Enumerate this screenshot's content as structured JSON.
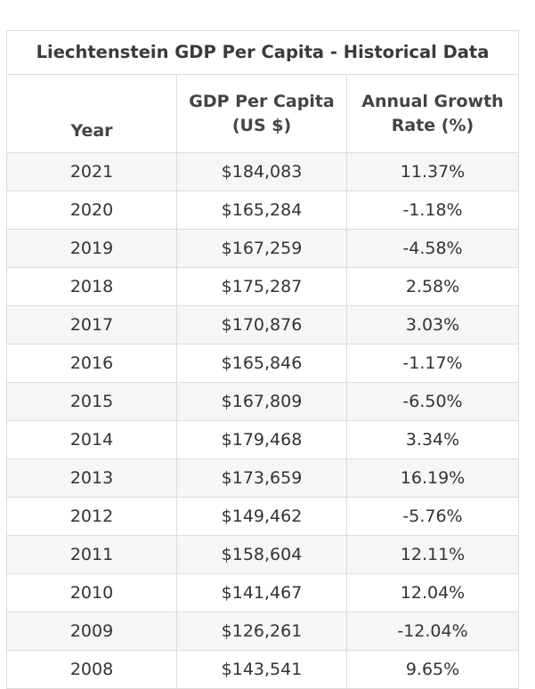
{
  "table": {
    "title": "Liechtenstein GDP Per Capita - Historical Data",
    "headers": {
      "year": "Year",
      "gdp_line1": "GDP Per Capita",
      "gdp_line2": "(US $)",
      "growth_line1": "Annual Growth",
      "growth_line2": "Rate (%)"
    },
    "rows": [
      {
        "year": "2021",
        "gdp": "$184,083",
        "growth": "11.37%"
      },
      {
        "year": "2020",
        "gdp": "$165,284",
        "growth": "-1.18%"
      },
      {
        "year": "2019",
        "gdp": "$167,259",
        "growth": "-4.58%"
      },
      {
        "year": "2018",
        "gdp": "$175,287",
        "growth": "2.58%"
      },
      {
        "year": "2017",
        "gdp": "$170,876",
        "growth": "3.03%"
      },
      {
        "year": "2016",
        "gdp": "$165,846",
        "growth": "-1.17%"
      },
      {
        "year": "2015",
        "gdp": "$167,809",
        "growth": "-6.50%"
      },
      {
        "year": "2014",
        "gdp": "$179,468",
        "growth": "3.34%"
      },
      {
        "year": "2013",
        "gdp": "$173,659",
        "growth": "16.19%"
      },
      {
        "year": "2012",
        "gdp": "$149,462",
        "growth": "-5.76%"
      },
      {
        "year": "2011",
        "gdp": "$158,604",
        "growth": "12.11%"
      },
      {
        "year": "2010",
        "gdp": "$141,467",
        "growth": "12.04%"
      },
      {
        "year": "2009",
        "gdp": "$126,261",
        "growth": "-12.04%"
      },
      {
        "year": "2008",
        "gdp": "$143,541",
        "growth": "9.65%"
      }
    ]
  }
}
